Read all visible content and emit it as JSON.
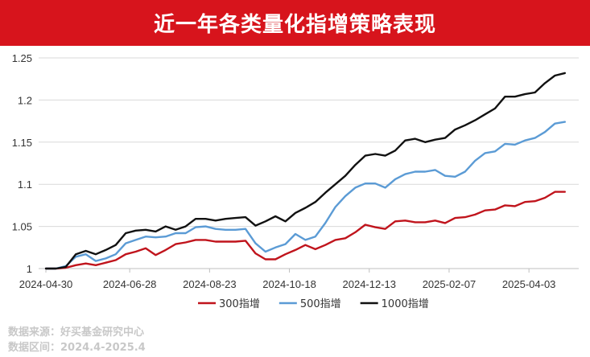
{
  "title": "近一年各类量化指增策略表现",
  "source": "数据来源：好买基金研究中心",
  "period": "数据区间：2024.4-2025.4",
  "chart_data": {
    "type": "line",
    "ylim": [
      1,
      1.25
    ],
    "yticks": [
      "1",
      "1.05",
      "1.1",
      "1.15",
      "1.2",
      "1.25"
    ],
    "xticks": [
      "2024-04-30",
      "2024-06-28",
      "2024-08-23",
      "2024-10-18",
      "2024-12-13",
      "2025-02-07",
      "2025-04-03"
    ],
    "xtick_index": [
      0,
      8.4,
      16.4,
      24.4,
      32.4,
      40.4,
      48.4
    ],
    "grid": true,
    "legend_position": "bottom",
    "series": [
      {
        "name": "300指增",
        "color": "#c0141c",
        "values": [
          1.0,
          1.0,
          1.001,
          1.004,
          1.006,
          1.004,
          1.007,
          1.01,
          1.017,
          1.02,
          1.024,
          1.016,
          1.022,
          1.029,
          1.031,
          1.034,
          1.034,
          1.032,
          1.032,
          1.032,
          1.033,
          1.018,
          1.011,
          1.011,
          1.017,
          1.022,
          1.028,
          1.023,
          1.028,
          1.034,
          1.036,
          1.043,
          1.052,
          1.049,
          1.047,
          1.056,
          1.057,
          1.055,
          1.055,
          1.057,
          1.054,
          1.06,
          1.061,
          1.064,
          1.069,
          1.07,
          1.075,
          1.074,
          1.079,
          1.08,
          1.084,
          1.091,
          1.091
        ]
      },
      {
        "name": "500指增",
        "color": "#5b9bd5",
        "values": [
          1.0,
          1.0,
          1.003,
          1.014,
          1.017,
          1.009,
          1.012,
          1.017,
          1.03,
          1.034,
          1.038,
          1.037,
          1.038,
          1.042,
          1.042,
          1.049,
          1.05,
          1.047,
          1.046,
          1.046,
          1.047,
          1.03,
          1.02,
          1.025,
          1.029,
          1.041,
          1.034,
          1.038,
          1.054,
          1.073,
          1.086,
          1.096,
          1.101,
          1.101,
          1.096,
          1.106,
          1.112,
          1.115,
          1.115,
          1.117,
          1.11,
          1.109,
          1.115,
          1.128,
          1.137,
          1.139,
          1.148,
          1.147,
          1.152,
          1.155,
          1.162,
          1.172,
          1.174
        ]
      },
      {
        "name": "1000指增",
        "color": "#111111",
        "values": [
          1.0,
          1.0,
          1.002,
          1.017,
          1.021,
          1.017,
          1.022,
          1.028,
          1.042,
          1.045,
          1.046,
          1.044,
          1.05,
          1.046,
          1.05,
          1.059,
          1.059,
          1.057,
          1.059,
          1.06,
          1.061,
          1.051,
          1.056,
          1.062,
          1.056,
          1.066,
          1.072,
          1.079,
          1.09,
          1.1,
          1.11,
          1.123,
          1.134,
          1.136,
          1.134,
          1.14,
          1.152,
          1.154,
          1.15,
          1.153,
          1.155,
          1.165,
          1.17,
          1.176,
          1.183,
          1.19,
          1.204,
          1.204,
          1.207,
          1.209,
          1.22,
          1.229,
          1.232
        ]
      }
    ]
  }
}
